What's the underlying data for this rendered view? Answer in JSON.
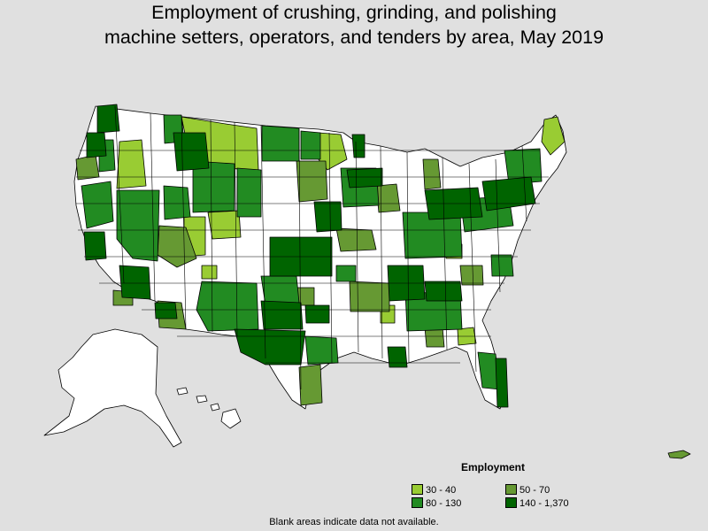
{
  "title": {
    "line1": "Employment of crushing, grinding, and polishing",
    "line2": "machine setters, operators, and tenders by area, May 2019"
  },
  "legend": {
    "title": "Employment",
    "items": [
      {
        "label": "30 - 40",
        "color": "#99cc33"
      },
      {
        "label": "50 - 70",
        "color": "#669933"
      },
      {
        "label": "80 - 130",
        "color": "#228b22"
      },
      {
        "label": "140 - 1,370",
        "color": "#006400"
      }
    ]
  },
  "footnote": "Blank areas indicate data not available.",
  "colors": {
    "background": "#e0e0e0",
    "no_data": "#ffffff",
    "border": "#000000"
  }
}
